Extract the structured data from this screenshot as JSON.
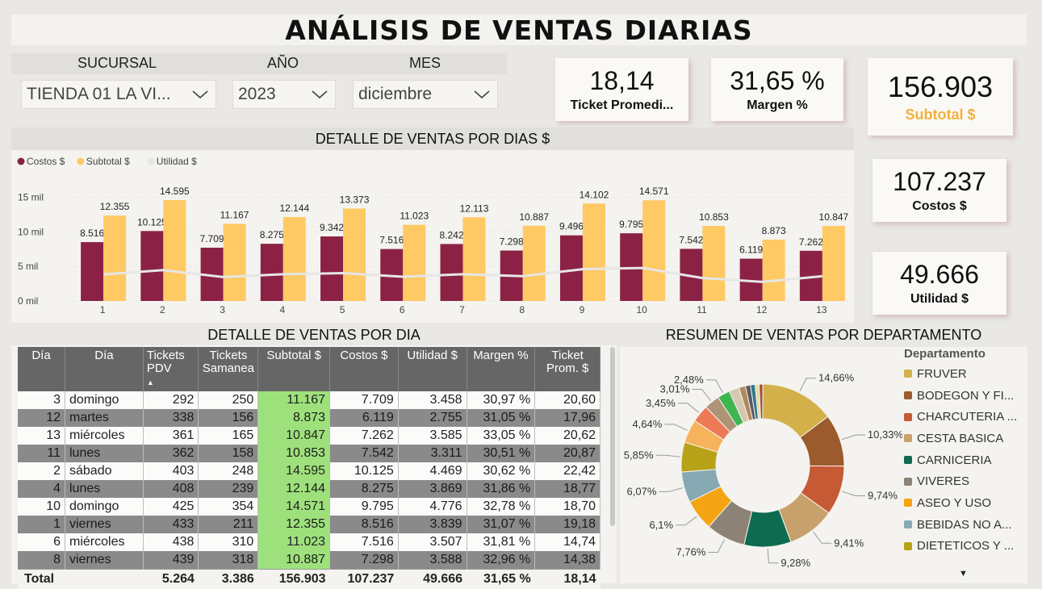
{
  "title": "ANÁLISIS DE VENTAS DIARIAS",
  "filters": {
    "sucursal_label": "SUCURSAL",
    "anio_label": "AÑO",
    "mes_label": "MES",
    "sucursal_value": "TIENDA 01 LA VI...",
    "anio_value": "2023",
    "mes_value": "diciembre"
  },
  "kpis": {
    "ticket_value": "18,14",
    "ticket_label": "Ticket Promedi...",
    "margen_value": "31,65 %",
    "margen_label": "Margen %",
    "subtotal_value": "156.903",
    "subtotal_label": "Subtotal $",
    "costos_value": "107.237",
    "costos_label": "Costos $",
    "utilidad_value": "49.666",
    "utilidad_label": "Utilidad $"
  },
  "colors": {
    "costos": "#8b2246",
    "subtotal": "#ffc964",
    "utilidad": "#e6e6e6",
    "subtotal_kpi": "#f2b13c"
  },
  "bar_section_title": "DETALLE DE VENTAS POR DIAS $",
  "chart_data": {
    "type": "bar",
    "categories": [
      "1",
      "2",
      "3",
      "4",
      "5",
      "6",
      "7",
      "8",
      "9",
      "10",
      "11",
      "12",
      "13"
    ],
    "series": [
      {
        "name": "Costos $",
        "type": "bar",
        "color": "#8b2246",
        "values": [
          8516,
          10125,
          7709,
          8275,
          9342,
          7516,
          8242,
          7298,
          9496,
          9795,
          7542,
          6119,
          7262
        ],
        "labels": [
          "8.516",
          "10.125",
          "7.709",
          "8.275",
          "9.342",
          "7.516",
          "8.242",
          "7.298",
          "9.496",
          "9.795",
          "7.542",
          "6.119",
          "7.262"
        ]
      },
      {
        "name": "Subtotal $",
        "type": "bar",
        "color": "#ffc964",
        "values": [
          12355,
          14595,
          11167,
          12144,
          13373,
          11023,
          12113,
          10887,
          14102,
          14571,
          10853,
          8873,
          10847
        ],
        "labels": [
          "12.355",
          "14.595",
          "11.167",
          "12.144",
          "13.373",
          "11.023",
          "12.113",
          "10.887",
          "14.102",
          "14.571",
          "10.853",
          "8.873",
          "10.847"
        ]
      },
      {
        "name": "Utilidad $",
        "type": "line",
        "color": "#e6e6e6",
        "values": [
          3839,
          4469,
          3458,
          3869,
          4031,
          3507,
          3871,
          3588,
          4606,
          4776,
          3311,
          2755,
          3585
        ]
      }
    ],
    "yticks": [
      "0 mil",
      "5 mil",
      "10 mil",
      "15 mil"
    ],
    "ylim": [
      0,
      16000
    ],
    "legend": "top-left"
  },
  "table": {
    "title": "DETALLE DE VENTAS POR DIA",
    "headers": [
      "Día",
      "Día",
      "Tickets PDV",
      "Tickets Samanea",
      "Subtotal $",
      "Costos $",
      "Utilidad $",
      "Margen %",
      "Ticket Prom. $"
    ],
    "rows": [
      [
        "3",
        "domingo",
        "292",
        "250",
        "11.167",
        "7.709",
        "3.458",
        "30,97 %",
        "20,60"
      ],
      [
        "12",
        "martes",
        "338",
        "156",
        "8.873",
        "6.119",
        "2.755",
        "31,05 %",
        "17,96"
      ],
      [
        "13",
        "miércoles",
        "361",
        "165",
        "10.847",
        "7.262",
        "3.585",
        "33,05 %",
        "20,62"
      ],
      [
        "11",
        "lunes",
        "362",
        "158",
        "10.853",
        "7.542",
        "3.311",
        "30,51 %",
        "20,87"
      ],
      [
        "2",
        "sábado",
        "403",
        "248",
        "14.595",
        "10.125",
        "4.469",
        "30,62 %",
        "22,42"
      ],
      [
        "4",
        "lunes",
        "408",
        "239",
        "12.144",
        "8.275",
        "3.869",
        "31,86 %",
        "18,77"
      ],
      [
        "10",
        "domingo",
        "425",
        "354",
        "14.571",
        "9.795",
        "4.776",
        "32,78 %",
        "18,70"
      ],
      [
        "1",
        "viernes",
        "433",
        "211",
        "12.355",
        "8.516",
        "3.839",
        "31,07 %",
        "19,18"
      ],
      [
        "6",
        "miércoles",
        "438",
        "310",
        "11.023",
        "7.516",
        "3.507",
        "31,81 %",
        "14,74"
      ],
      [
        "8",
        "viernes",
        "439",
        "318",
        "10.887",
        "7.298",
        "3.588",
        "32,96 %",
        "14,38"
      ]
    ],
    "total": [
      "Total",
      "",
      "5.264",
      "3.386",
      "156.903",
      "107.237",
      "49.666",
      "31,65 %",
      "18,14"
    ]
  },
  "donut": {
    "title": "RESUMEN DE VENTAS POR DEPARTAMENTO",
    "legend_title": "Departamento",
    "legend": [
      {
        "label": "FRUVER",
        "color": "#d4b04a"
      },
      {
        "label": "BODEGON Y FI...",
        "color": "#9c5b2c"
      },
      {
        "label": "CHARCUTERIA ...",
        "color": "#c65a35"
      },
      {
        "label": "CESTA BASICA",
        "color": "#c8a06c"
      },
      {
        "label": "CARNICERIA",
        "color": "#0f6b50"
      },
      {
        "label": "VIVERES",
        "color": "#8c8275"
      },
      {
        "label": "ASEO Y USO",
        "color": "#f5a414"
      },
      {
        "label": "BEBIDAS NO A...",
        "color": "#86a9b3"
      },
      {
        "label": "DIETETICOS Y ...",
        "color": "#b8a217"
      }
    ],
    "slices": [
      {
        "pct": 14.66,
        "label": "14,66%",
        "color": "#d4b04a"
      },
      {
        "pct": 10.33,
        "label": "10,33%",
        "color": "#9c5b2c"
      },
      {
        "pct": 9.74,
        "label": "9,74%",
        "color": "#c65a35"
      },
      {
        "pct": 9.41,
        "label": "9,41%",
        "color": "#c8a06c"
      },
      {
        "pct": 9.28,
        "label": "9,28%",
        "color": "#0f6b50"
      },
      {
        "pct": 7.76,
        "label": "7,76%",
        "color": "#8c8275"
      },
      {
        "pct": 6.1,
        "label": "6,1%",
        "color": "#f5a414"
      },
      {
        "pct": 6.07,
        "label": "6,07%",
        "color": "#86a9b3"
      },
      {
        "pct": 5.85,
        "label": "5,85%",
        "color": "#b8a217"
      },
      {
        "pct": 4.64,
        "label": "4,64%",
        "color": "#f6b35c"
      },
      {
        "pct": 3.45,
        "label": "3,45%",
        "color": "#ec7a55"
      },
      {
        "pct": 3.01,
        "label": "3,01%",
        "color": "#ae9477"
      },
      {
        "pct": 2.48,
        "label": "2,48%",
        "color": "#3fb551"
      },
      {
        "pct": 2.0,
        "label": "",
        "color": "#d6c7b0"
      },
      {
        "pct": 1.3,
        "label": "",
        "color": "#b28a5a"
      },
      {
        "pct": 1.0,
        "label": "",
        "color": "#5a5a6a"
      },
      {
        "pct": 0.9,
        "label": "",
        "color": "#2c7a8a"
      },
      {
        "pct": 0.8,
        "label": "",
        "color": "#e8d8a8"
      },
      {
        "pct": 0.7,
        "label": "",
        "color": "#a05030"
      }
    ]
  }
}
